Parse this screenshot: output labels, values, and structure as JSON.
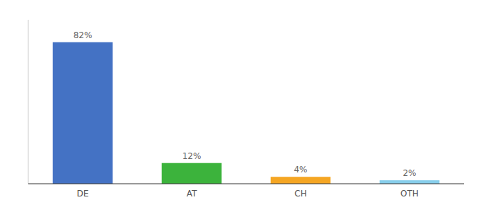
{
  "chart_data": {
    "type": "bar",
    "categories": [
      "DE",
      "AT",
      "CH",
      "OTH"
    ],
    "values": [
      82,
      12,
      4,
      2
    ],
    "value_labels": [
      "82%",
      "12%",
      "4%",
      "2%"
    ],
    "colors": [
      "#4472c4",
      "#3cb33c",
      "#f5a623",
      "#87ceeb"
    ],
    "ylim": [
      0,
      95
    ],
    "data_labels": true,
    "tick_labels": "x",
    "grid": false
  }
}
